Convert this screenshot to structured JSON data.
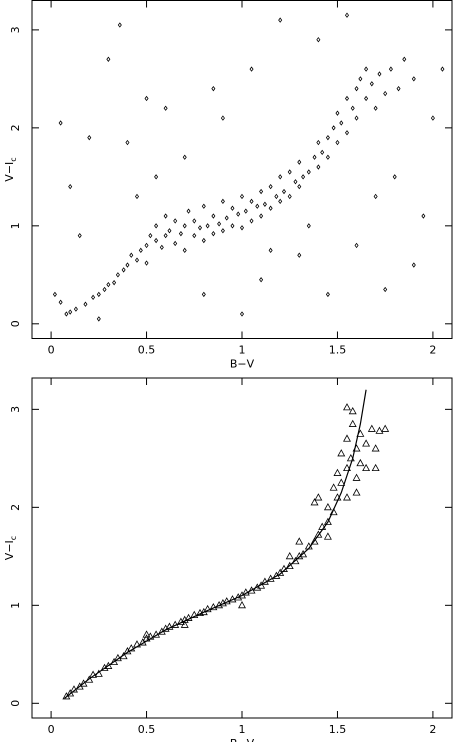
{
  "chart_data": [
    {
      "type": "scatter",
      "marker": "diamond",
      "color": "#000000",
      "xlabel": "B−V",
      "ylabel": "V−I",
      "ylabel_subscript": "c",
      "xlim": [
        -0.1,
        2.1
      ],
      "ylim": [
        -0.15,
        3.3
      ],
      "xticks": [
        0,
        0.5,
        1,
        1.5,
        2
      ],
      "yticks": [
        0,
        1,
        2,
        3
      ],
      "x": [
        0.05,
        0.08,
        0.1,
        0.13,
        0.18,
        0.22,
        0.25,
        0.28,
        0.3,
        0.33,
        0.35,
        0.38,
        0.4,
        0.42,
        0.45,
        0.47,
        0.5,
        0.5,
        0.52,
        0.55,
        0.55,
        0.58,
        0.6,
        0.6,
        0.62,
        0.65,
        0.65,
        0.68,
        0.7,
        0.7,
        0.72,
        0.75,
        0.75,
        0.78,
        0.8,
        0.8,
        0.82,
        0.85,
        0.85,
        0.88,
        0.9,
        0.9,
        0.92,
        0.95,
        0.95,
        0.98,
        1.0,
        1.0,
        1.02,
        1.05,
        1.05,
        1.08,
        1.1,
        1.1,
        1.12,
        1.15,
        1.15,
        1.18,
        1.2,
        1.2,
        1.22,
        1.25,
        1.25,
        1.28,
        1.3,
        1.3,
        1.32,
        1.35,
        1.38,
        1.4,
        1.4,
        1.42,
        1.45,
        1.45,
        1.48,
        1.5,
        1.5,
        1.52,
        1.55,
        1.55,
        1.58,
        1.6,
        1.6,
        1.62,
        1.65,
        1.65,
        1.68,
        1.7,
        1.72,
        1.75,
        1.78,
        1.82,
        1.85,
        1.9,
        0.02,
        0.05,
        0.1,
        0.15,
        0.2,
        0.3,
        0.36,
        0.4,
        0.5,
        0.6,
        0.7,
        0.9,
        1.05,
        1.2,
        1.1,
        1.3,
        1.45,
        0.8,
        1.6,
        1.75,
        1.9,
        1.95,
        1.4,
        1.55,
        1.8,
        2.05,
        2.0,
        0.25,
        1.0,
        0.45,
        0.55,
        1.15,
        1.35,
        1.7,
        0.85
      ],
      "y": [
        0.22,
        0.1,
        0.12,
        0.15,
        0.2,
        0.27,
        0.3,
        0.35,
        0.4,
        0.42,
        0.5,
        0.55,
        0.6,
        0.7,
        0.65,
        0.75,
        0.8,
        0.62,
        0.9,
        0.85,
        1.0,
        0.78,
        0.9,
        1.1,
        0.95,
        0.82,
        1.05,
        0.92,
        1.0,
        0.75,
        1.15,
        0.9,
        1.05,
        0.98,
        1.2,
        0.85,
        1.0,
        1.1,
        0.92,
        1.02,
        1.25,
        0.95,
        1.08,
        1.0,
        1.18,
        1.12,
        1.3,
        0.98,
        1.15,
        1.05,
        1.25,
        1.2,
        1.1,
        1.35,
        1.22,
        1.18,
        1.4,
        1.3,
        1.25,
        1.5,
        1.35,
        1.3,
        1.55,
        1.45,
        1.4,
        1.65,
        1.5,
        1.55,
        1.7,
        1.6,
        1.85,
        1.75,
        1.9,
        1.7,
        2.0,
        1.85,
        2.15,
        2.05,
        2.3,
        1.95,
        2.2,
        2.4,
        2.1,
        2.5,
        2.3,
        2.6,
        2.45,
        2.2,
        2.55,
        2.35,
        2.6,
        2.4,
        2.7,
        2.5,
        0.3,
        2.05,
        1.4,
        0.9,
        1.9,
        2.7,
        3.05,
        1.85,
        2.3,
        2.2,
        1.7,
        2.1,
        2.6,
        3.1,
        0.45,
        0.7,
        0.3,
        0.3,
        0.8,
        0.35,
        0.6,
        1.1,
        2.9,
        3.15,
        1.5,
        2.6,
        2.1,
        0.05,
        0.1,
        1.3,
        1.5,
        0.75,
        1.0,
        1.3,
        2.4
      ]
    },
    {
      "type": "scatter",
      "marker": "triangle",
      "color": "#000000",
      "xlabel": "B−V",
      "ylabel": "V−I",
      "ylabel_subscript": "c",
      "xlim": [
        -0.1,
        2.1
      ],
      "ylim": [
        -0.15,
        3.32
      ],
      "xticks": [
        0,
        0.5,
        1,
        1.5,
        2
      ],
      "yticks": [
        0,
        1,
        2,
        3
      ],
      "x": [
        0.08,
        0.1,
        0.12,
        0.15,
        0.17,
        0.2,
        0.22,
        0.25,
        0.28,
        0.3,
        0.33,
        0.35,
        0.38,
        0.4,
        0.42,
        0.45,
        0.48,
        0.5,
        0.52,
        0.55,
        0.58,
        0.6,
        0.62,
        0.65,
        0.68,
        0.7,
        0.72,
        0.75,
        0.78,
        0.8,
        0.82,
        0.85,
        0.88,
        0.9,
        0.92,
        0.95,
        0.98,
        1.0,
        1.02,
        1.05,
        1.08,
        1.1,
        1.12,
        1.15,
        1.18,
        1.2,
        1.22,
        1.25,
        1.28,
        1.3,
        1.32,
        1.35,
        1.38,
        1.4,
        1.42,
        1.45,
        1.45,
        1.48,
        1.48,
        1.5,
        1.5,
        1.52,
        1.52,
        1.55,
        1.55,
        1.57,
        1.58,
        1.6,
        1.6,
        1.62,
        1.62,
        1.65,
        1.65,
        1.68,
        1.7,
        1.72,
        1.75,
        1.55,
        1.58,
        1.4,
        1.38,
        1.3,
        1.25,
        1.0,
        0.7,
        0.5,
        1.45,
        1.55,
        1.6,
        1.7
      ],
      "y": [
        0.07,
        0.1,
        0.14,
        0.17,
        0.2,
        0.24,
        0.29,
        0.3,
        0.36,
        0.38,
        0.42,
        0.46,
        0.48,
        0.53,
        0.56,
        0.6,
        0.62,
        0.66,
        0.68,
        0.7,
        0.73,
        0.76,
        0.78,
        0.8,
        0.83,
        0.85,
        0.87,
        0.9,
        0.92,
        0.93,
        0.96,
        0.98,
        1.0,
        1.02,
        1.04,
        1.06,
        1.08,
        1.1,
        1.13,
        1.15,
        1.18,
        1.2,
        1.24,
        1.27,
        1.3,
        1.33,
        1.37,
        1.4,
        1.45,
        1.5,
        1.52,
        1.6,
        1.65,
        1.72,
        1.8,
        1.85,
        2.0,
        1.95,
        2.2,
        2.1,
        2.35,
        2.25,
        2.55,
        2.4,
        2.7,
        2.5,
        2.85,
        2.6,
        2.3,
        2.75,
        2.45,
        2.65,
        2.4,
        2.8,
        2.6,
        2.78,
        2.8,
        3.02,
        2.98,
        2.1,
        2.05,
        1.65,
        1.5,
        1.0,
        0.8,
        0.7,
        1.7,
        2.1,
        2.15,
        2.4
      ],
      "fit_x": [
        0.07,
        0.2,
        0.4,
        0.6,
        0.8,
        1.0,
        1.2,
        1.35,
        1.45,
        1.52,
        1.58,
        1.62,
        1.65
      ],
      "fit_y": [
        0.05,
        0.25,
        0.52,
        0.75,
        0.93,
        1.1,
        1.32,
        1.58,
        1.85,
        2.15,
        2.5,
        2.85,
        3.2
      ]
    }
  ]
}
